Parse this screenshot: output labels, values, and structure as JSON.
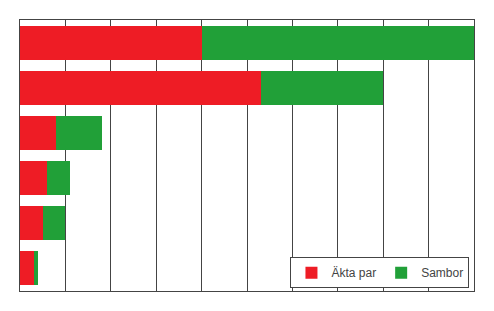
{
  "chart_data": {
    "type": "bar",
    "orientation": "horizontal",
    "stacked": true,
    "categories": [
      null,
      null,
      null,
      null,
      null,
      null
    ],
    "series": [
      {
        "name": "Äkta par",
        "color": "#ee1c25",
        "values": [
          40,
          53,
          8,
          6,
          5,
          3
        ]
      },
      {
        "name": "Sambor",
        "color": "#21a038",
        "values": [
          60,
          27,
          10,
          5,
          5,
          1
        ]
      }
    ],
    "xlim": [
      0,
      100
    ],
    "xticks": [
      0,
      10,
      20,
      30,
      40,
      50,
      60,
      70,
      80,
      90,
      100
    ],
    "grid": true,
    "legend": "lower right",
    "tick_labels": false
  }
}
